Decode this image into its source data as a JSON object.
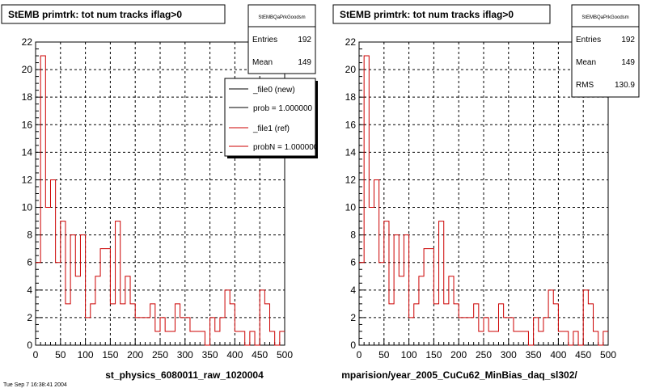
{
  "charts": [
    {
      "title": "StEMB primtrk: tot num tracks iflag>0",
      "stats": {
        "name": "StEMBQaPrkGoodsm",
        "rows": [
          {
            "label": "Entries",
            "value": "192"
          },
          {
            "label": "Mean",
            "value": "149"
          }
        ]
      },
      "legend": [
        {
          "label": "_file0 (new)",
          "color": "#000000"
        },
        {
          "label": "prob = 1.000000",
          "color": "#000000"
        },
        {
          "label": "_file1 (ref)",
          "color": "#cc0000"
        },
        {
          "label": "probN = 1.000000",
          "color": "#cc0000"
        }
      ],
      "xlabel": "st_physics_6080011_raw_1020004"
    },
    {
      "title": "StEMB primtrk: tot num tracks iflag>0",
      "stats": {
        "name": "StEMBQaPrkGoodsm",
        "rows": [
          {
            "label": "Entries",
            "value": "192"
          },
          {
            "label": "Mean",
            "value": "149"
          },
          {
            "label": "RMS",
            "value": "130.9"
          }
        ]
      },
      "xlabel": "mparision/year_2005_CuCu62_MinBias_daq_sl302/"
    }
  ],
  "footer_text": "Tue Sep 7 16:38:41 2004",
  "chart_data": [
    {
      "type": "step-histogram",
      "x_range": [
        0,
        500
      ],
      "y_range": [
        0,
        22
      ],
      "x_ticks": [
        0,
        50,
        100,
        150,
        200,
        250,
        300,
        350,
        400,
        450,
        500
      ],
      "y_ticks": [
        0,
        2,
        4,
        6,
        8,
        10,
        12,
        14,
        16,
        18,
        20,
        22
      ],
      "grid": true,
      "line_color": "#cc0000",
      "bin_width": 10,
      "bin_starts": [
        0,
        10,
        20,
        30,
        40,
        50,
        60,
        70,
        80,
        90,
        100,
        110,
        120,
        130,
        140,
        150,
        160,
        170,
        180,
        190,
        200,
        210,
        220,
        230,
        240,
        250,
        260,
        270,
        280,
        290,
        300,
        310,
        320,
        330,
        340,
        350,
        360,
        370,
        380,
        390,
        400,
        410,
        420,
        430,
        440,
        450,
        460,
        470,
        480,
        490
      ],
      "values": [
        6,
        21,
        10,
        12,
        6,
        9,
        3,
        8,
        5,
        8,
        2,
        3,
        5,
        7,
        7,
        3,
        9,
        3,
        5,
        3,
        2,
        2,
        2,
        3,
        1,
        2,
        1,
        1,
        3,
        2,
        2,
        1,
        1,
        1,
        0,
        2,
        1,
        2,
        4,
        3,
        1,
        1,
        0,
        1,
        0,
        4,
        3,
        1,
        0,
        1
      ]
    },
    {
      "type": "step-histogram",
      "x_range": [
        0,
        500
      ],
      "y_range": [
        0,
        22
      ],
      "x_ticks": [
        0,
        50,
        100,
        150,
        200,
        250,
        300,
        350,
        400,
        450,
        500
      ],
      "y_ticks": [
        0,
        2,
        4,
        6,
        8,
        10,
        12,
        14,
        16,
        18,
        20,
        22
      ],
      "grid": true,
      "line_color": "#cc0000",
      "bin_width": 10,
      "bin_starts": [
        0,
        10,
        20,
        30,
        40,
        50,
        60,
        70,
        80,
        90,
        100,
        110,
        120,
        130,
        140,
        150,
        160,
        170,
        180,
        190,
        200,
        210,
        220,
        230,
        240,
        250,
        260,
        270,
        280,
        290,
        300,
        310,
        320,
        330,
        340,
        350,
        360,
        370,
        380,
        390,
        400,
        410,
        420,
        430,
        440,
        450,
        460,
        470,
        480,
        490
      ],
      "values": [
        6,
        21,
        10,
        12,
        6,
        9,
        3,
        8,
        5,
        8,
        2,
        3,
        5,
        7,
        7,
        3,
        9,
        3,
        5,
        3,
        2,
        2,
        2,
        3,
        1,
        2,
        1,
        1,
        3,
        2,
        2,
        1,
        1,
        1,
        0,
        2,
        1,
        2,
        4,
        3,
        1,
        1,
        0,
        1,
        0,
        4,
        3,
        1,
        0,
        1
      ]
    }
  ]
}
